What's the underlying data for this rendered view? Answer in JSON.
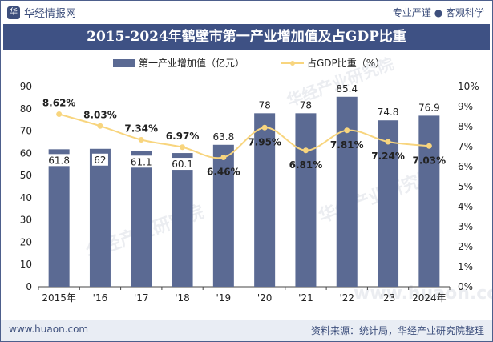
{
  "header": {
    "brand": "华经情报网",
    "brand_logo": "华",
    "slogan": "专业严谨 ● 客观科学"
  },
  "title": "2015-2024年鹤壁市第一产业增加值及占GDP比重",
  "footer": {
    "website": "www.huaon.com",
    "source": "资料来源：统计局，华经产业研究院整理"
  },
  "watermarks": [
    "华经产业研究院",
    "华经产业研究院",
    "华经产业研究院",
    "www.huaon.com"
  ],
  "colors": {
    "bar": "#5b6a93",
    "line": "#f8d57e",
    "title_bg": "#3e5184",
    "accent": "#3d4f7c"
  },
  "chart_data": {
    "type": "bar",
    "categories": [
      "2015年",
      "'16",
      "'17",
      "'18",
      "'19",
      "'20",
      "'21",
      "'22",
      "'23",
      "2024年"
    ],
    "legend_position": "top",
    "grid": false,
    "series": [
      {
        "name": "第一产业增加值（亿元）",
        "type": "bar",
        "axis": "left",
        "values": [
          61.8,
          62,
          61.1,
          60.1,
          63.8,
          78,
          78,
          85.4,
          74.8,
          76.9
        ],
        "labels": [
          "61.8",
          "62",
          "61.1",
          "60.1",
          "63.8",
          "78",
          "78",
          "85.4",
          "74.8",
          "76.9"
        ]
      },
      {
        "name": "占GDP比重（%）",
        "type": "line",
        "axis": "right",
        "values": [
          8.62,
          8.03,
          7.34,
          6.97,
          6.46,
          7.95,
          6.81,
          7.81,
          7.24,
          7.03
        ],
        "labels": [
          "8.62%",
          "8.03%",
          "7.34%",
          "6.97%",
          "6.46%",
          "7.95%",
          "6.81%",
          "7.81%",
          "7.24%",
          "7.03%"
        ]
      }
    ],
    "y_left": {
      "min": 0,
      "max": 90,
      "ticks": [
        "0",
        "10",
        "20",
        "30",
        "40",
        "50",
        "60",
        "70",
        "80",
        "90"
      ]
    },
    "y_right": {
      "min": 0,
      "max": 10,
      "ticks": [
        "0%",
        "1%",
        "2%",
        "3%",
        "4%",
        "5%",
        "6%",
        "7%",
        "8%",
        "9%",
        "10%"
      ]
    }
  }
}
